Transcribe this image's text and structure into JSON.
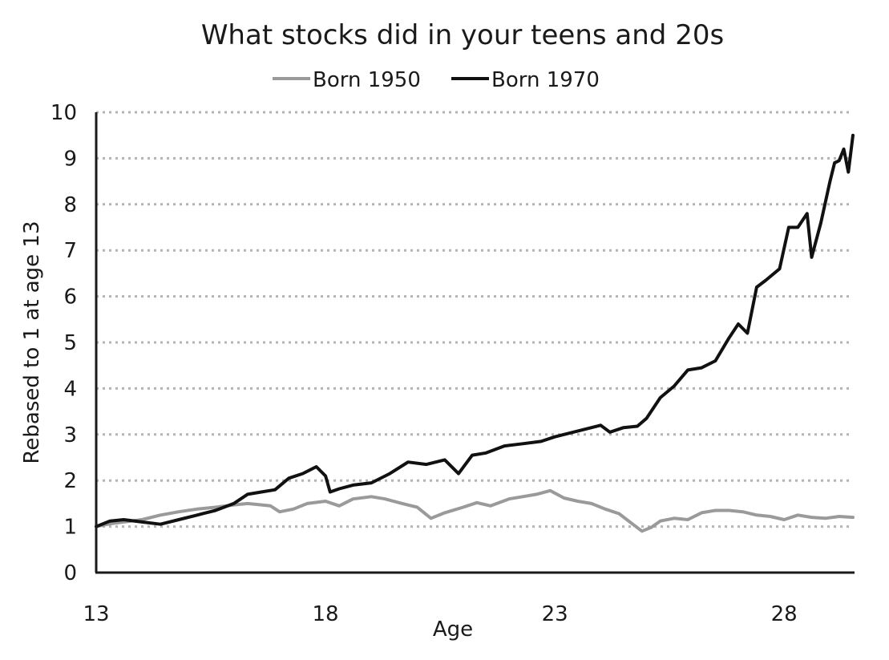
{
  "chart_data": {
    "type": "line",
    "title": "What stocks did in your teens and 20s",
    "xlabel": "Age",
    "ylabel": "Rebased to 1 at age 13",
    "xlim": [
      13,
      29.5
    ],
    "ylim": [
      0,
      10
    ],
    "xticks": [
      13,
      18,
      23,
      28
    ],
    "xtick_labels": [
      "13",
      "18",
      "23",
      "28"
    ],
    "yticks": [
      0,
      1,
      2,
      3,
      4,
      5,
      6,
      7,
      8,
      9,
      10
    ],
    "ytick_labels": [
      "0",
      "1",
      "2",
      "3",
      "4",
      "5",
      "6",
      "7",
      "8",
      "9",
      "10"
    ],
    "grid": "horizontal-dotted",
    "legend_position": "top",
    "series": [
      {
        "name": "Born 1950",
        "color": "#9a9a9a",
        "x": [
          13.0,
          13.3,
          13.6,
          14.0,
          14.4,
          14.8,
          15.2,
          15.6,
          16.0,
          16.3,
          16.5,
          16.8,
          17.0,
          17.3,
          17.6,
          18.0,
          18.3,
          18.6,
          19.0,
          19.3,
          19.6,
          20.0,
          20.3,
          20.6,
          21.0,
          21.3,
          21.6,
          22.0,
          22.3,
          22.6,
          22.9,
          23.2,
          23.5,
          23.8,
          24.1,
          24.4,
          24.7,
          24.9,
          25.1,
          25.3,
          25.6,
          25.9,
          26.2,
          26.5,
          26.8,
          27.1,
          27.4,
          27.7,
          28.0,
          28.3,
          28.6,
          28.9,
          29.2,
          29.5
        ],
        "values": [
          1.0,
          1.06,
          1.1,
          1.15,
          1.25,
          1.32,
          1.38,
          1.42,
          1.47,
          1.5,
          1.48,
          1.45,
          1.32,
          1.38,
          1.5,
          1.55,
          1.45,
          1.6,
          1.65,
          1.6,
          1.52,
          1.42,
          1.18,
          1.3,
          1.42,
          1.52,
          1.45,
          1.6,
          1.65,
          1.7,
          1.78,
          1.62,
          1.55,
          1.5,
          1.38,
          1.28,
          1.05,
          0.9,
          0.98,
          1.12,
          1.18,
          1.15,
          1.3,
          1.35,
          1.35,
          1.32,
          1.25,
          1.22,
          1.15,
          1.25,
          1.2,
          1.18,
          1.22,
          1.2
        ]
      },
      {
        "name": "Born 1970",
        "color": "#111111",
        "x": [
          13.0,
          13.3,
          13.6,
          14.0,
          14.4,
          14.8,
          15.2,
          15.6,
          16.0,
          16.3,
          16.6,
          16.9,
          17.2,
          17.5,
          17.8,
          18.0,
          18.1,
          18.3,
          18.6,
          19.0,
          19.4,
          19.8,
          20.2,
          20.6,
          20.9,
          21.2,
          21.5,
          21.9,
          22.3,
          22.7,
          23.0,
          23.4,
          23.8,
          24.0,
          24.2,
          24.5,
          24.8,
          25.0,
          25.3,
          25.6,
          25.9,
          26.2,
          26.5,
          26.8,
          27.0,
          27.2,
          27.4,
          27.6,
          27.9,
          28.1,
          28.3,
          28.5,
          28.6,
          28.8,
          29.0,
          29.1,
          29.2,
          29.3,
          29.4,
          29.5
        ],
        "values": [
          1.0,
          1.12,
          1.15,
          1.1,
          1.05,
          1.15,
          1.25,
          1.35,
          1.5,
          1.7,
          1.75,
          1.8,
          2.05,
          2.15,
          2.3,
          2.1,
          1.75,
          1.82,
          1.9,
          1.95,
          2.15,
          2.4,
          2.35,
          2.45,
          2.15,
          2.55,
          2.6,
          2.75,
          2.8,
          2.85,
          2.95,
          3.05,
          3.15,
          3.2,
          3.05,
          3.15,
          3.18,
          3.35,
          3.8,
          4.05,
          4.4,
          4.45,
          4.6,
          5.1,
          5.4,
          5.2,
          6.2,
          6.35,
          6.6,
          7.5,
          7.5,
          7.8,
          6.85,
          7.6,
          8.5,
          8.9,
          8.95,
          9.2,
          8.7,
          9.5
        ]
      }
    ]
  }
}
